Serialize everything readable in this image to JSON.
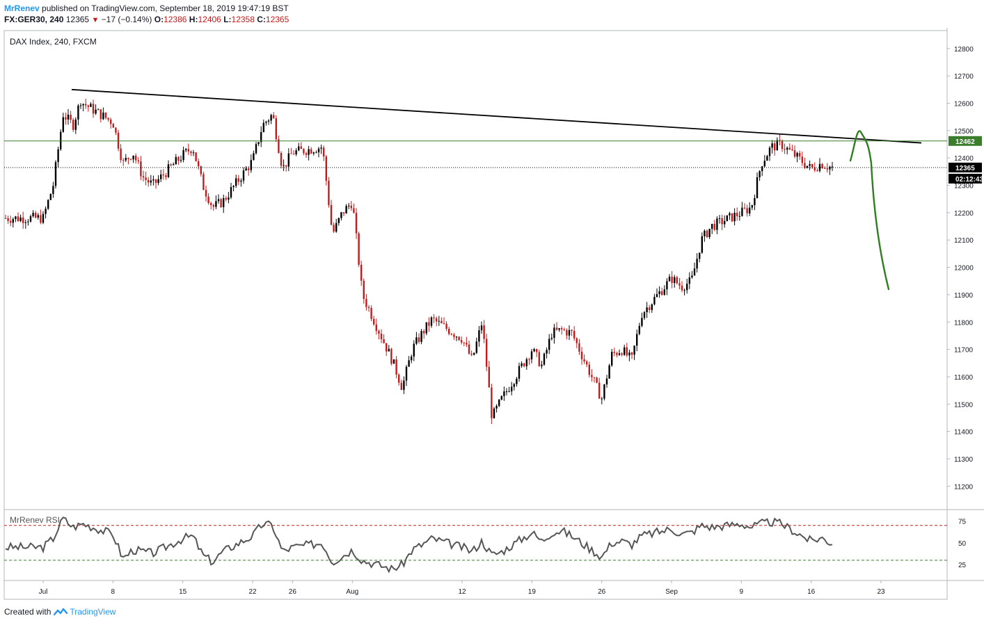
{
  "header": {
    "author": "MrRenev",
    "published": "published on TradingView.com, September 18, 2019 19:47:19 BST",
    "symbol": "FX:GER30, 240",
    "last": "12365",
    "change": "−17 (−0.14%)",
    "open_label": "O:",
    "open": "12386",
    "high_label": "H:",
    "high": "12406",
    "low_label": "L:",
    "low": "12358",
    "close_label": "C:",
    "close": "12365"
  },
  "footer": {
    "created_with": "Created with",
    "brand": "TradingView"
  },
  "colors": {
    "up": "#000000",
    "down": "#c11b1b",
    "forecast": "#2e7d1e",
    "level": "#3a7d2c",
    "rsi": "#555555"
  },
  "chart_data": [
    {
      "type": "candlestick",
      "title": "DAX Index, 240, FXCM",
      "ylim": [
        11150,
        12830
      ],
      "y_ticks": [
        11200,
        11300,
        11400,
        11500,
        11600,
        11700,
        11800,
        11900,
        12000,
        12100,
        12200,
        12300,
        12400,
        12500,
        12600,
        12700,
        12800
      ],
      "x_ticks": [
        "Jul",
        "8",
        "15",
        "22",
        "26",
        "Aug",
        "12",
        "19",
        "26",
        "Sep",
        "9",
        "16",
        "23"
      ],
      "price_path": [
        [
          "Jul 1",
          12180
        ],
        [
          "Jul 2",
          12300
        ],
        [
          "Jul 3",
          12560
        ],
        [
          "Jul 4",
          12520
        ],
        [
          "Jul 5",
          12640
        ],
        [
          "Jul 5",
          12600
        ],
        [
          "Jul 8",
          12530
        ],
        [
          "Jul 9",
          12380
        ],
        [
          "Jul 10",
          12420
        ],
        [
          "Jul 11",
          12330
        ],
        [
          "Jul 12",
          12300
        ],
        [
          "Jul 15",
          12410
        ],
        [
          "Jul 16",
          12440
        ],
        [
          "Jul 17",
          12300
        ],
        [
          "Jul 18",
          12220
        ],
        [
          "Jul 19",
          12240
        ],
        [
          "Jul 22",
          12390
        ],
        [
          "Jul 23",
          12520
        ],
        [
          "Jul 24",
          12560
        ],
        [
          "Jul 25",
          12360
        ],
        [
          "Jul 26",
          12420
        ],
        [
          "Jul 29",
          12440
        ],
        [
          "Jul 30",
          12120
        ],
        [
          "Jul 31",
          12200
        ],
        [
          "Aug 1",
          12240
        ],
        [
          "Aug 2",
          11900
        ],
        [
          "Aug 5",
          11660
        ],
        [
          "Aug 6",
          11560
        ],
        [
          "Aug 7",
          11700
        ],
        [
          "Aug 8",
          11760
        ],
        [
          "Aug 9",
          11810
        ],
        [
          "Aug 12",
          11740
        ],
        [
          "Aug 13",
          11660
        ],
        [
          "Aug 14",
          11800
        ],
        [
          "Aug 15",
          11450
        ],
        [
          "Aug 16",
          11520
        ],
        [
          "Aug 19",
          11700
        ],
        [
          "Aug 20",
          11640
        ],
        [
          "Aug 21",
          11760
        ],
        [
          "Aug 22",
          11770
        ],
        [
          "Aug 23",
          11760
        ],
        [
          "Aug 26",
          11520
        ],
        [
          "Aug 27",
          11680
        ],
        [
          "Aug 28",
          11700
        ],
        [
          "Aug 29",
          11660
        ],
        [
          "Aug 30",
          11830
        ],
        [
          "Sep 2",
          11960
        ],
        [
          "Sep 3",
          11930
        ],
        [
          "Sep 4",
          11950
        ],
        [
          "Sep 5",
          12100
        ],
        [
          "Sep 6",
          12150
        ],
        [
          "Sep 9",
          12200
        ],
        [
          "Sep 10",
          12220
        ],
        [
          "Sep 11",
          12380
        ],
        [
          "Sep 12",
          12440
        ],
        [
          "Sep 13",
          12450
        ],
        [
          "Sep 16",
          12360
        ],
        [
          "Sep 17",
          12380
        ],
        [
          "Sep 18",
          12365
        ]
      ],
      "resistance_line": {
        "from": [
          "Jul 4",
          12650
        ],
        "to": [
          "Sep 23",
          12460
        ]
      },
      "level_line": {
        "value": 12462,
        "label": "12462"
      },
      "last_price_line": {
        "value": 12365,
        "label": "12365",
        "countdown": "02:12:43"
      },
      "forecast_path": [
        [
          "Sep 18",
          12390
        ],
        [
          "Sep 19",
          12490
        ],
        [
          "Sep 19",
          12380
        ],
        [
          "Sep 20",
          11920
        ]
      ]
    },
    {
      "type": "line",
      "title": "MrRenev RSI",
      "ylim": [
        10,
        85
      ],
      "y_ticks": [
        25,
        50,
        75
      ],
      "overbought": 70,
      "oversold": 30,
      "path": [
        [
          "Jul 1",
          45
        ],
        [
          "Jul 2",
          55
        ],
        [
          "Jul 3",
          78
        ],
        [
          "Jul 4",
          68
        ],
        [
          "Jul 5",
          72
        ],
        [
          "Jul 8",
          60
        ],
        [
          "Jul 9",
          32
        ],
        [
          "Jul 10",
          42
        ],
        [
          "Jul 11",
          40
        ],
        [
          "Jul 12",
          38
        ],
        [
          "Jul 15",
          55
        ],
        [
          "Jul 16",
          58
        ],
        [
          "Jul 17",
          36
        ],
        [
          "Jul 18",
          28
        ],
        [
          "Jul 19",
          40
        ],
        [
          "Jul 22",
          58
        ],
        [
          "Jul 23",
          72
        ],
        [
          "Jul 24",
          70
        ],
        [
          "Jul 25",
          40
        ],
        [
          "Jul 26",
          45
        ],
        [
          "Jul 29",
          50
        ],
        [
          "Jul 30",
          28
        ],
        [
          "Jul 31",
          35
        ],
        [
          "Aug 1",
          42
        ],
        [
          "Aug 2",
          30
        ],
        [
          "Aug 5",
          20
        ],
        [
          "Aug 6",
          25
        ],
        [
          "Aug 7",
          42
        ],
        [
          "Aug 8",
          48
        ],
        [
          "Aug 9",
          55
        ],
        [
          "Aug 12",
          45
        ],
        [
          "Aug 13",
          40
        ],
        [
          "Aug 14",
          52
        ],
        [
          "Aug 15",
          36
        ],
        [
          "Aug 16",
          40
        ],
        [
          "Aug 19",
          62
        ],
        [
          "Aug 20",
          52
        ],
        [
          "Aug 21",
          62
        ],
        [
          "Aug 22",
          64
        ],
        [
          "Aug 23",
          58
        ],
        [
          "Aug 26",
          34
        ],
        [
          "Aug 27",
          50
        ],
        [
          "Aug 28",
          52
        ],
        [
          "Aug 29",
          48
        ],
        [
          "Aug 30",
          58
        ],
        [
          "Sep 2",
          66
        ],
        [
          "Sep 3",
          60
        ],
        [
          "Sep 4",
          62
        ],
        [
          "Sep 5",
          70
        ],
        [
          "Sep 6",
          68
        ],
        [
          "Sep 9",
          72
        ],
        [
          "Sep 10",
          68
        ],
        [
          "Sep 11",
          72
        ],
        [
          "Sep 12",
          74
        ],
        [
          "Sep 13",
          72
        ],
        [
          "Sep 16",
          52
        ],
        [
          "Sep 17",
          56
        ],
        [
          "Sep 18",
          50
        ]
      ]
    }
  ]
}
